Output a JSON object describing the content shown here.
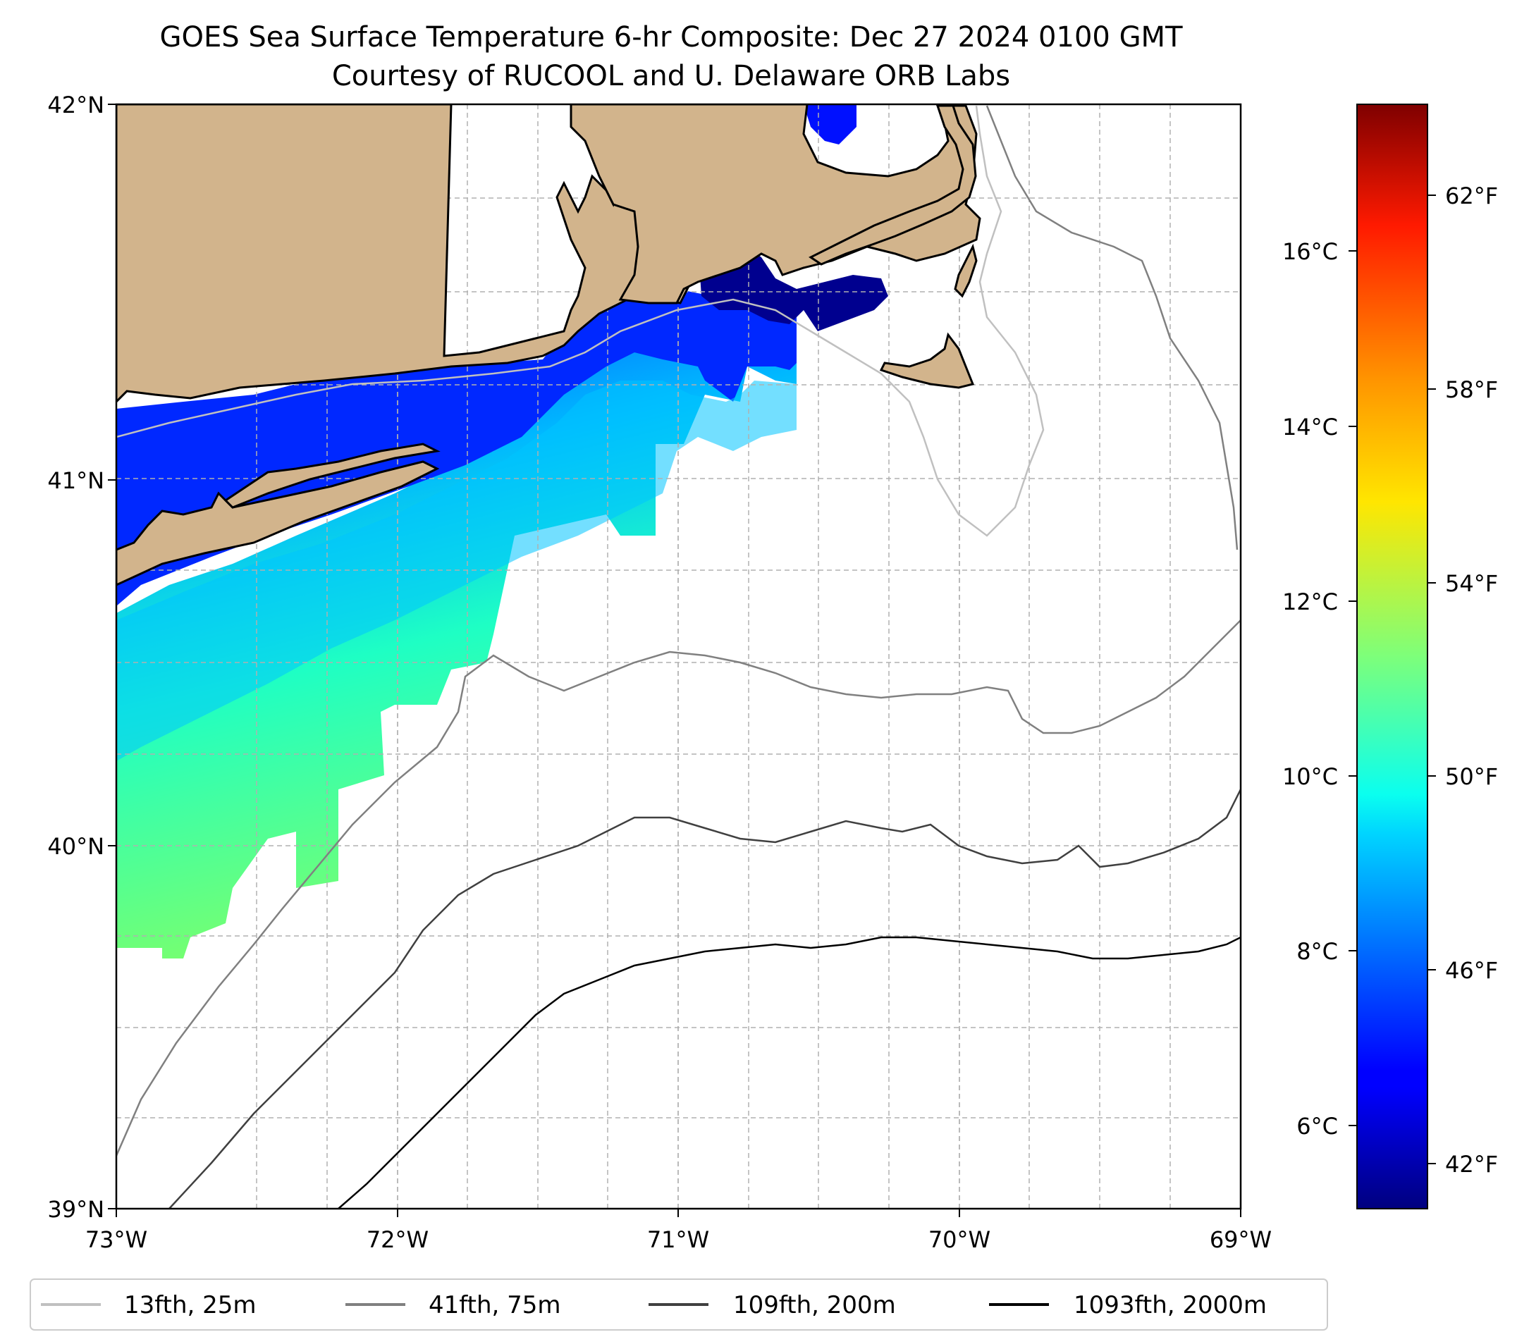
{
  "title_line1": "GOES Sea Surface Temperature 6-hr Composite: Dec 27 2024 0100 GMT",
  "title_line2": "Courtesy of RUCOOL and U. Delaware ORB Labs",
  "map": {
    "extent": {
      "lon": [
        -73,
        -69
      ],
      "lat": [
        39,
        42
      ]
    },
    "lat_ticks": [
      "42°N",
      "41°N",
      "40°N",
      "39°N"
    ],
    "lon_ticks": [
      "73°W",
      "72°W",
      "71°W",
      "70°W",
      "69°W"
    ],
    "land_color": "#d2b48c"
  },
  "colorbar": {
    "colormap": "jet",
    "celsius_range": [
      5.2,
      17.3
    ],
    "celsius_ticks": [
      "16°C",
      "14°C",
      "12°C",
      "10°C",
      "8°C",
      "6°C"
    ],
    "fahrenheit_ticks": [
      "62°F",
      "58°F",
      "54°F",
      "50°F",
      "46°F",
      "42°F"
    ]
  },
  "legend": {
    "placement": "bottom",
    "items": [
      {
        "label": "13fth, 25m",
        "color": "#c0c0c0"
      },
      {
        "label": "41fth, 75m",
        "color": "#808080"
      },
      {
        "label": "109fth, 200m",
        "color": "#404040"
      },
      {
        "label": "1093fth, 2000m",
        "color": "#000000"
      }
    ]
  }
}
